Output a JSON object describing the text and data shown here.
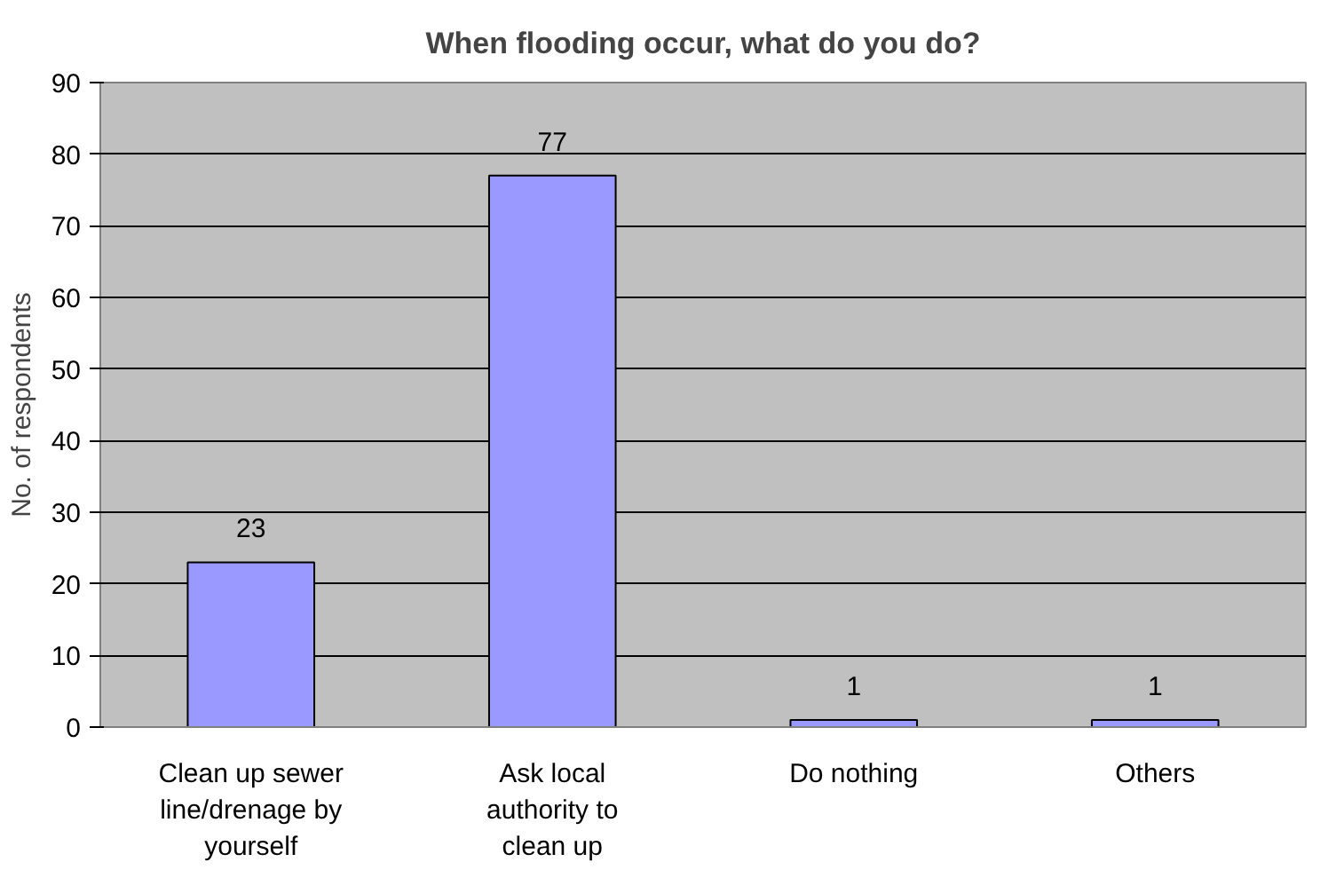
{
  "chart_data": {
    "type": "bar",
    "title": "When flooding occur, what do you do?",
    "ylabel": "No. of respondents",
    "categories": [
      "Clean up sewer line/drenage by yourself",
      "Ask local authority to clean up",
      "Do nothing",
      "Others"
    ],
    "values": [
      23,
      77,
      1,
      1
    ],
    "color": "#9999ff",
    "ylim": [
      0,
      90
    ],
    "yticks": [
      0,
      10,
      20,
      30,
      40,
      50,
      60,
      70,
      80,
      90
    ],
    "grid": "y",
    "data_labels": true
  }
}
